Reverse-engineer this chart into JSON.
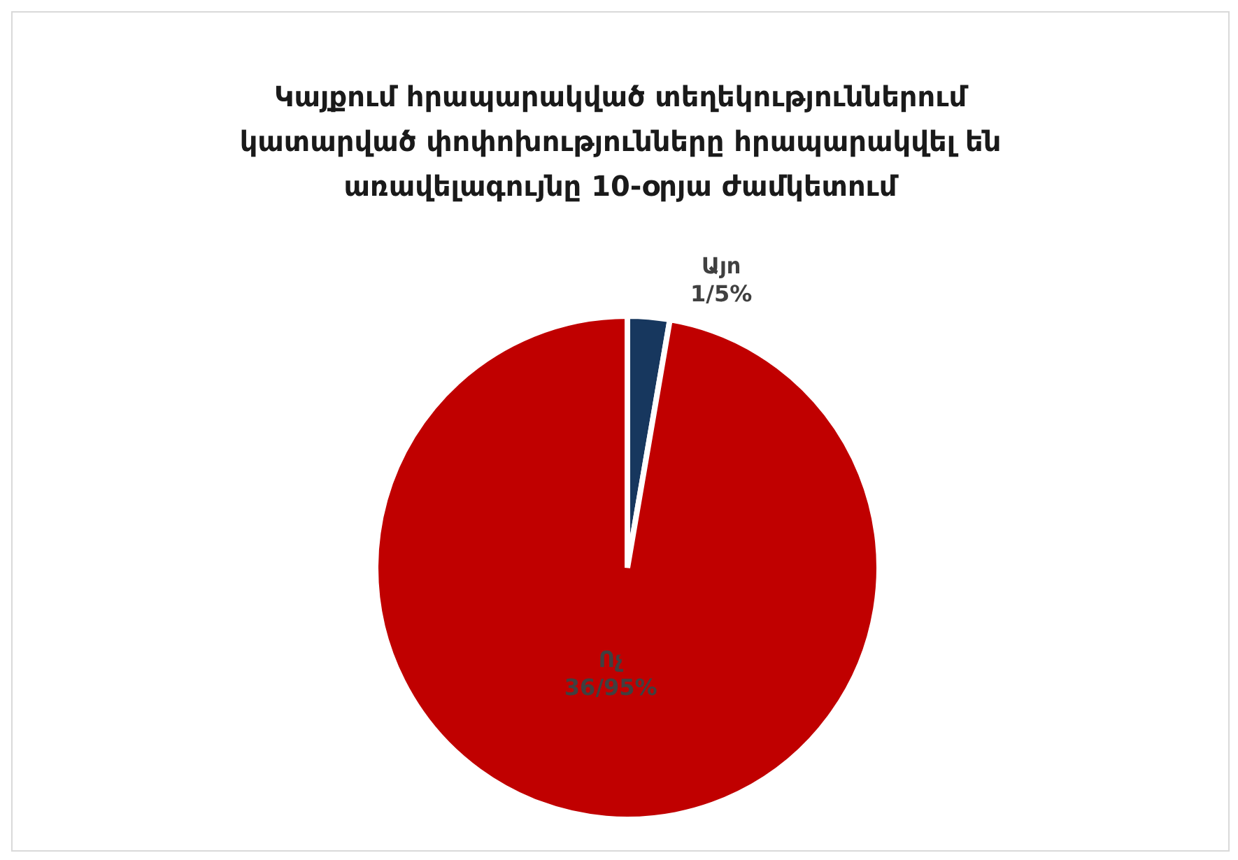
{
  "chart_data": {
    "type": "pie",
    "title": "Կայքում հրապարակված տեղեկություններում կատարված փոփոխությունները հրապարակվել են առավելագույնը 10-օրյա ժամկետում",
    "categories": [
      "Այո",
      "Ոչ"
    ],
    "values": [
      1,
      36
    ],
    "colors": [
      "#17375e",
      "#c00000"
    ],
    "value_labels": [
      "1/5%",
      "36/95%"
    ],
    "legend": false
  }
}
